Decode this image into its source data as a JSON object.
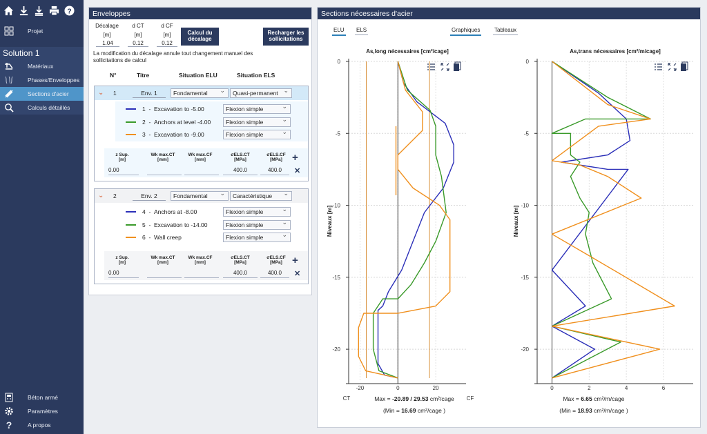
{
  "toolbar": {
    "icons": [
      "home-icon",
      "download-icon",
      "download-all-icon",
      "print-icon",
      "help-icon"
    ]
  },
  "nav": {
    "projet": "Projet",
    "solution": "Solution 1",
    "items": [
      "Matériaux",
      "Phases/Enveloppes",
      "Sections d'acier",
      "Calculs détaillés"
    ],
    "bottom": [
      "Béton armé",
      "Paramètres",
      "A propos"
    ]
  },
  "env": {
    "title": "Enveloppes",
    "decalage_label": "Décalage",
    "decalage_unit": "[m]",
    "decalage_value": "1.04",
    "dct_label": "d CT",
    "dct_unit": "[m]",
    "dct_value": "0.12",
    "dcf_label": "d CF",
    "dcf_unit": "[m]",
    "dcf_value": "0.12",
    "calc_btn": "Calcul du décalage",
    "reload_btn": "Recharger les sollicitations",
    "note": "La modification du décalage annule tout changement manuel des sollicitations de calcul",
    "col_no": "N°",
    "col_titre": "Titre",
    "col_elu": "Situation ELU",
    "col_els": "Situation ELS",
    "groups": [
      {
        "no": "1",
        "titre": "Env. 1",
        "elu": "Fondamental",
        "els": "Quasi-permanent",
        "rows": [
          {
            "no": "1",
            "label": "Excavation to -5.00",
            "type": "Flexion simple",
            "color": "#2b2fb8"
          },
          {
            "no": "2",
            "label": "Anchors at level -4.00",
            "type": "Flexion simple",
            "color": "#3a9a2a"
          },
          {
            "no": "3",
            "label": "Excavation to -9.00",
            "type": "Flexion simple",
            "color": "#f0901e"
          }
        ],
        "params": {
          "zsup": "0.00",
          "wkct": "",
          "wkcf": "",
          "sct": "400.0",
          "scf": "400.0"
        }
      },
      {
        "no": "2",
        "titre": "Env. 2",
        "elu": "Fondamental",
        "els": "Caractéristique",
        "rows": [
          {
            "no": "4",
            "label": "Anchors at -8.00",
            "type": "Flexion simple",
            "color": "#2b2fb8"
          },
          {
            "no": "5",
            "label": "Excavation to -14.00",
            "type": "Flexion simple",
            "color": "#3a9a2a"
          },
          {
            "no": "6",
            "label": "Wall creep",
            "type": "Flexion simple",
            "color": "#f0901e"
          }
        ],
        "params": {
          "zsup": "0.00",
          "wkct": "",
          "wkcf": "",
          "sct": "400.0",
          "scf": "400.0"
        }
      }
    ],
    "hdr_zsup": "z Sup.",
    "hdr_zsup_u": "[m]",
    "hdr_wkct": "Wk max.CT",
    "hdr_wkct_u": "[mm]",
    "hdr_wkcf": "Wk max.CF",
    "hdr_wkcf_u": "[mm]",
    "hdr_sct": "σELS.CT",
    "hdr_sct_u": "[MPa]",
    "hdr_scf": "σELS.CF",
    "hdr_scf_u": "[MPa]"
  },
  "sections": {
    "title": "Sections nécessaires d'acier",
    "tabs": [
      "ELU",
      "ELS"
    ],
    "views": [
      "Graphiques",
      "Tableaux"
    ]
  },
  "chart_data": [
    {
      "type": "line",
      "title": "As,long nécessaires [cm²/cage]",
      "ylabel": "Niveaux [m]",
      "xlim": [
        -26,
        36
      ],
      "ylim": [
        -22.2,
        0
      ],
      "xticks": [
        -20,
        0,
        20
      ],
      "yticks": [
        0,
        -5,
        -10,
        -15,
        -20
      ],
      "x_end_labels": [
        "CT",
        "CF"
      ],
      "vlines": [
        -16.69,
        16.69
      ],
      "series": [
        {
          "color": "#2b2fb8",
          "points": [
            [
              0,
              0
            ],
            [
              3,
              -1.5
            ],
            [
              10,
              -2.8
            ],
            [
              25,
              -4.3
            ],
            [
              29.5,
              -5.8
            ],
            [
              29.5,
              -7
            ],
            [
              24,
              -8.8
            ],
            [
              14,
              -10.5
            ],
            [
              8,
              -12.5
            ],
            [
              2,
              -14.5
            ],
            [
              -5,
              -16
            ],
            [
              -8,
              -17
            ],
            [
              -10.5,
              -17.3
            ],
            [
              -10.5,
              -21
            ],
            [
              -7,
              -21.8
            ],
            [
              0,
              -22
            ]
          ]
        },
        {
          "color": "#3a9a2a",
          "points": [
            [
              0,
              0
            ],
            [
              5,
              -2
            ],
            [
              17,
              -3.4
            ],
            [
              20,
              -4.5
            ],
            [
              20,
              -6.5
            ],
            [
              23,
              -8
            ],
            [
              25.5,
              -10.5
            ],
            [
              20,
              -12.5
            ],
            [
              14,
              -14
            ],
            [
              7,
              -15.5
            ],
            [
              0,
              -16.5
            ],
            [
              -8,
              -16.5
            ],
            [
              -13,
              -17.5
            ],
            [
              -13,
              -20
            ],
            [
              -10,
              -21.5
            ],
            [
              0,
              -22
            ]
          ]
        },
        {
          "color": "#f0901e",
          "points": [
            [
              0,
              0
            ],
            [
              4,
              -2
            ],
            [
              13,
              -3.5
            ],
            [
              13,
              -4.8
            ],
            [
              0,
              -6.5
            ],
            [
              0,
              -7.5
            ],
            [
              8,
              -8.8
            ],
            [
              22,
              -10
            ],
            [
              27.5,
              -11
            ],
            [
              27.5,
              -16
            ],
            [
              20,
              -17
            ],
            [
              0,
              -17.5
            ],
            [
              -18,
              -17.5
            ],
            [
              -20.8,
              -18.5
            ],
            [
              -20.8,
              -20.5
            ],
            [
              -17,
              -21.5
            ],
            [
              0,
              -22
            ]
          ]
        },
        {
          "color": "#f0901e",
          "points": [
            [
              -1,
              -4.5
            ],
            [
              -1,
              -9.3
            ]
          ]
        }
      ],
      "max_label": "Max =",
      "max_value": "-20.89 / 29.53",
      "min_label": "(Min =",
      "min_value": "16.69",
      "unit": "cm²/cage",
      "min_close": ")"
    },
    {
      "type": "line",
      "title": "As,trans nécessaires [cm²/m/cage]",
      "ylabel": "Niveaux [m]",
      "xlim": [
        -0.8,
        7.6
      ],
      "ylim": [
        -22.2,
        0
      ],
      "xticks": [
        0,
        2,
        4,
        6
      ],
      "yticks": [
        0,
        -5,
        -10,
        -15,
        -20
      ],
      "series": [
        {
          "color": "#2b2fb8",
          "points": [
            [
              0,
              0
            ],
            [
              2.5,
              -2.2
            ],
            [
              4,
              -4
            ],
            [
              4.2,
              -5.5
            ],
            [
              3,
              -6.5
            ],
            [
              0.5,
              -7
            ],
            [
              3,
              -7.5
            ],
            [
              4.1,
              -7.5
            ],
            [
              0,
              -14.5
            ],
            [
              1.8,
              -17
            ],
            [
              0,
              -18.4
            ],
            [
              2.3,
              -20
            ],
            [
              0,
              -22
            ]
          ]
        },
        {
          "color": "#3a9a2a",
          "points": [
            [
              0,
              0
            ],
            [
              3,
              -2.5
            ],
            [
              5.3,
              -4
            ],
            [
              1.8,
              -4
            ],
            [
              0,
              -5
            ],
            [
              1,
              -5
            ],
            [
              1,
              -6.5
            ],
            [
              1.5,
              -7
            ],
            [
              1,
              -8
            ],
            [
              1.5,
              -9.5
            ],
            [
              2,
              -10.5
            ],
            [
              1.8,
              -12
            ],
            [
              2.2,
              -14
            ],
            [
              3.2,
              -16.5
            ],
            [
              0,
              -18.4
            ],
            [
              3.7,
              -19.5
            ],
            [
              0,
              -22
            ]
          ]
        },
        {
          "color": "#f0901e",
          "points": [
            [
              0,
              0
            ],
            [
              3,
              -3
            ],
            [
              5.3,
              -4
            ],
            [
              2.5,
              -4.5
            ],
            [
              0,
              -6.9
            ],
            [
              1.5,
              -7.2
            ],
            [
              3,
              -8
            ],
            [
              4.8,
              -9.5
            ],
            [
              0,
              -12
            ],
            [
              2,
              -13.5
            ],
            [
              6.6,
              -17
            ],
            [
              0,
              -18.4
            ],
            [
              5.8,
              -20
            ],
            [
              0,
              -22
            ]
          ]
        }
      ],
      "max_label": "Max =",
      "max_value": "6.65",
      "min_label": "(Min =",
      "min_value": "18.93",
      "unit": "cm²/m/cage",
      "min_close": ")"
    }
  ]
}
